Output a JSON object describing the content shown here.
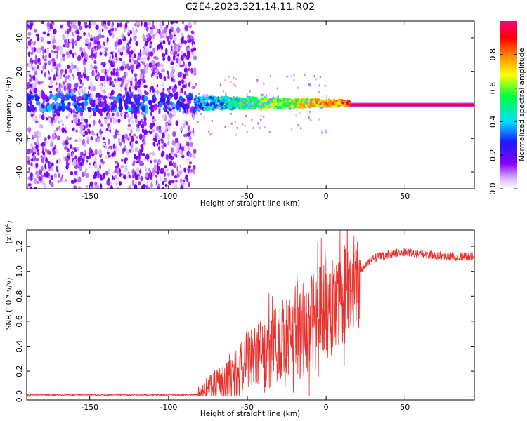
{
  "figure_title": "C2E4.2023.321.14.11.R02",
  "chart_data": [
    {
      "type": "heatmap",
      "title": "C2E4.2023.321.14.11.R02",
      "xlabel": "Height of straight line (km)",
      "ylabel": "Frequency (Hz)",
      "xlim": [
        -190,
        94
      ],
      "ylim": [
        -50,
        50
      ],
      "x_ticks": [
        -150,
        -100,
        -50,
        0,
        50
      ],
      "x_tick_labels": [
        "-150",
        "-100",
        "-50",
        "0",
        "50"
      ],
      "y_ticks": [
        -40,
        -20,
        0,
        20,
        40
      ],
      "y_tick_labels": [
        "-40",
        "-20",
        "0",
        "20",
        "40"
      ],
      "colorbar": {
        "label": "Normalized spectral amplitude",
        "range": [
          0,
          1
        ],
        "ticks": [
          0.0,
          0.2,
          0.4,
          0.6,
          0.8
        ],
        "tick_labels": [
          "0.0",
          "0.2",
          "0.4",
          "0.6",
          "0.8"
        ],
        "colormap": [
          "#ffffff",
          "#8a00ff",
          "#1a1aff",
          "#00e0ff",
          "#00ff40",
          "#ffff00",
          "#ff8000",
          "#ff0000",
          "#ff0080"
        ]
      },
      "regions": [
        {
          "name": "broadband noise",
          "x_range": [
            -190,
            -83
          ],
          "freq_range": [
            -50,
            50
          ],
          "amplitude": 0.1
        },
        {
          "name": "fluctuating band",
          "x_range": [
            -83,
            15
          ],
          "freq_center": 1,
          "freq_halfwidth": 4,
          "amplitude": 0.5
        },
        {
          "name": "stable carrier",
          "x_range": [
            15,
            94
          ],
          "freq_center": 0,
          "amplitude": 0.95
        }
      ],
      "grid": false
    },
    {
      "type": "line",
      "xlabel": "Height of straight line (km)",
      "ylabel": "SNR (10 * v/v)",
      "y_multiplier_label": "(x10",
      "y_multiplier_exp": "4",
      "xlim": [
        -190,
        94
      ],
      "ylim": [
        -0.03,
        1.33
      ],
      "x_ticks": [
        -150,
        -100,
        -50,
        0,
        50
      ],
      "x_tick_labels": [
        "-150",
        "-100",
        "-50",
        "0",
        "50"
      ],
      "y_ticks": [
        0.0,
        0.2,
        0.4,
        0.6,
        0.8,
        1.0,
        1.2
      ],
      "y_tick_labels": [
        "0.0",
        "0.2",
        "0.4",
        "0.6",
        "0.8",
        "1.0",
        "1.2"
      ],
      "series": [
        {
          "color": "#e8302c",
          "x": [
            -190,
            -150,
            -100,
            -85,
            -80,
            -75,
            -70,
            -65,
            -60,
            -55,
            -50,
            -45,
            -40,
            -35,
            -30,
            -25,
            -20,
            -15,
            -10,
            -5,
            0,
            5,
            10,
            15,
            20,
            25,
            30,
            35,
            40,
            50,
            60,
            70,
            80,
            94
          ],
          "y": [
            0.01,
            0.01,
            0.01,
            0.01,
            0.02,
            0.08,
            0.12,
            0.13,
            0.15,
            0.2,
            0.3,
            0.35,
            0.3,
            0.4,
            0.45,
            0.42,
            0.5,
            0.55,
            0.58,
            0.62,
            0.7,
            0.72,
            0.78,
            0.88,
            0.98,
            1.05,
            1.1,
            1.12,
            1.14,
            1.15,
            1.14,
            1.13,
            1.12,
            1.12
          ]
        }
      ],
      "grid": false
    }
  ]
}
